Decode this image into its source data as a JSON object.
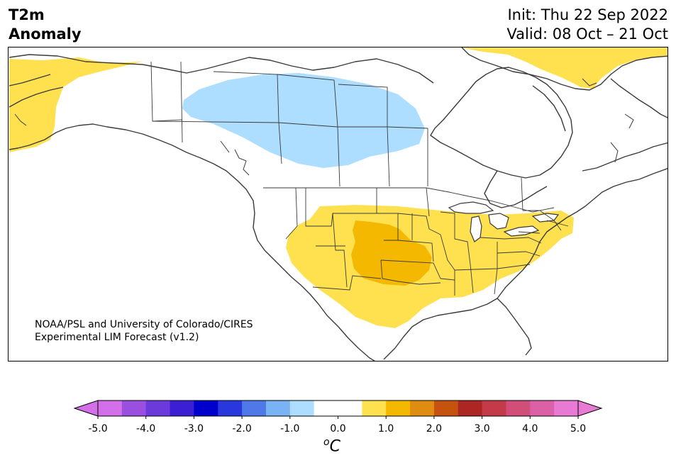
{
  "header": {
    "title_line1": "T2m",
    "title_line2": "Anomaly",
    "init": "Init: Thu 22 Sep 2022",
    "valid": "Valid: 08 Oct – 21 Oct"
  },
  "credit": {
    "line1": "NOAA/PSL and University of Colorado/CIRES",
    "line2": "Experimental LIM Forecast (v1.2)"
  },
  "colorbar": {
    "unit_base": "C",
    "unit_sup": "o",
    "ticks": [
      "-5.0",
      "-4.0",
      "-3.0",
      "-2.0",
      "-1.0",
      "0.0",
      "1.0",
      "2.0",
      "3.0",
      "4.0",
      "5.0"
    ],
    "bins": [
      {
        "from": -5.0,
        "to": -4.5,
        "color": "#d46fea"
      },
      {
        "from": -4.5,
        "to": -4.0,
        "color": "#9a4fe0"
      },
      {
        "from": -4.0,
        "to": -3.5,
        "color": "#6c3adb"
      },
      {
        "from": -3.5,
        "to": -3.0,
        "color": "#3b20d3"
      },
      {
        "from": -3.0,
        "to": -2.5,
        "color": "#0000cc"
      },
      {
        "from": -2.5,
        "to": -2.0,
        "color": "#2838dc"
      },
      {
        "from": -2.0,
        "to": -1.5,
        "color": "#4f79e8"
      },
      {
        "from": -1.5,
        "to": -1.0,
        "color": "#79b3f4"
      },
      {
        "from": -1.0,
        "to": -0.5,
        "color": "#addeff"
      },
      {
        "from": -0.5,
        "to": 0.5,
        "color": "#ffffff"
      },
      {
        "from": 0.5,
        "to": 1.0,
        "color": "#ffe150"
      },
      {
        "from": 1.0,
        "to": 1.5,
        "color": "#f4b800"
      },
      {
        "from": 1.5,
        "to": 2.0,
        "color": "#e08c10"
      },
      {
        "from": 2.0,
        "to": 2.5,
        "color": "#c65210"
      },
      {
        "from": 2.5,
        "to": 3.0,
        "color": "#ae2624"
      },
      {
        "from": 3.0,
        "to": 3.5,
        "color": "#c33a48"
      },
      {
        "from": 3.5,
        "to": 4.0,
        "color": "#d04e78"
      },
      {
        "from": 4.0,
        "to": 4.5,
        "color": "#dc60a6"
      },
      {
        "from": 4.5,
        "to": 5.0,
        "color": "#e87ad4"
      }
    ],
    "under_color": "#d46fea",
    "over_color": "#e87ad4"
  },
  "anomaly_regions": [
    {
      "name": "Alaska",
      "level": "warm +0.5 to +1.0",
      "color": "#ffe150"
    },
    {
      "name": "Greenland",
      "level": "warm +0.5 to +1.0",
      "color": "#ffe150"
    },
    {
      "name": "Central/Southern US",
      "level": "warm +0.5 to +1.0",
      "color": "#ffe150"
    },
    {
      "name": "Southern Plains core",
      "level": "warm +1.0 to +1.5",
      "color": "#f4b800"
    },
    {
      "name": "Northwestern Canada / Prairies",
      "level": "cool -1.0 to -0.5",
      "color": "#addeff"
    }
  ]
}
